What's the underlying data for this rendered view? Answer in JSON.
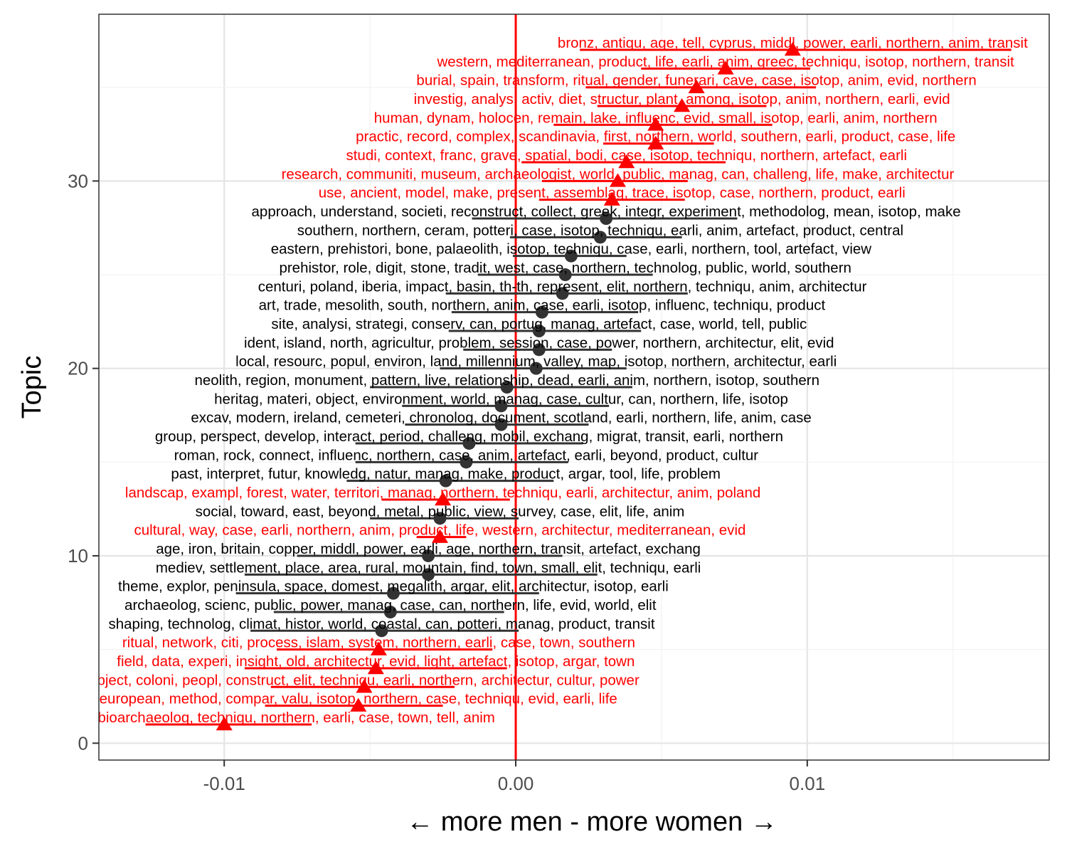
{
  "chart_data": {
    "type": "scatter",
    "xlabel": "← more men  -  more women →",
    "ylabel": "Topic",
    "xlim": [
      -0.0143,
      0.0183
    ],
    "ylim": [
      -0.9,
      38.9
    ],
    "x_ticks": [
      -0.01,
      0.0,
      0.01
    ],
    "x_tick_labels": [
      "-0.01",
      "0.00",
      "0.01"
    ],
    "y_ticks": [
      0,
      10,
      20,
      30
    ],
    "y_tick_labels": [
      "0",
      "10",
      "20",
      "30"
    ],
    "grid": true,
    "reference_line": {
      "x": 0,
      "color": "#ff0000"
    },
    "significant_color": "#ff0000",
    "nonsignificant_color": "#333333",
    "points": [
      {
        "topic": 1,
        "x": -0.01,
        "lo": -0.0127,
        "hi": -0.007,
        "significant": true,
        "label": "archaeobotan, isotop, bioarchaeolog, techniqu, northern, earli, case, town, tell, anim"
      },
      {
        "topic": 2,
        "x": -0.0054,
        "lo": -0.0086,
        "hi": -0.0025,
        "significant": true,
        "label": "european, method, compar, valu, isotop, northern, case, techniqu, evid, earli, life"
      },
      {
        "topic": 3,
        "x": -0.0052,
        "lo": -0.0084,
        "hi": -0.0021,
        "significant": true,
        "label": "object, coloni, peopl, construct, elit, techniqu, earli, northern, architectur, cultur, power"
      },
      {
        "topic": 4,
        "x": -0.0048,
        "lo": -0.0093,
        "hi": -0.0003,
        "significant": true,
        "label": "field, data, experi, insight, old, architectur, evid, light, artefact, isotop, argar, town"
      },
      {
        "topic": 5,
        "x": -0.0047,
        "lo": -0.0082,
        "hi": -0.0008,
        "significant": true,
        "label": "ritual, network, citi, process, islam, system, northern, earli, case, town, southern"
      },
      {
        "topic": 6,
        "x": -0.0046,
        "lo": -0.0091,
        "hi": 0.0001,
        "significant": false,
        "label": "shaping, technolog, climat, histor, world, coastal, can, potteri, manag, product, transit"
      },
      {
        "topic": 7,
        "x": -0.0043,
        "lo": -0.0083,
        "hi": -0.0004,
        "significant": false,
        "label": "archaeolog, scienc, public, power, manag, case, can, northern, life, evid, world, elit"
      },
      {
        "topic": 8,
        "x": -0.0042,
        "lo": -0.0096,
        "hi": 0.0008,
        "significant": false,
        "label": "theme, explor, peninsula, space, domest, megalith, argar, elit, architectur, isotop, earli"
      },
      {
        "topic": 9,
        "x": -0.003,
        "lo": -0.0093,
        "hi": 0.0028,
        "significant": false,
        "label": "mediev, settlement, place, area, rural, mountain, find, town, small, elit, techniqu, earli"
      },
      {
        "topic": 10,
        "x": -0.003,
        "lo": -0.0075,
        "hi": 0.0016,
        "significant": false,
        "label": "age, iron, britain, copper, middl, power, earli, age, northern, transit, artefact, exchang"
      },
      {
        "topic": 11,
        "x": -0.0026,
        "lo": -0.0034,
        "hi": -0.0017,
        "significant": true,
        "label": "cultural, way, case, earli, northern, anim, product, life, western, architectur, mediterranean, evid"
      },
      {
        "topic": 12,
        "x": -0.0026,
        "lo": -0.005,
        "hi": 0.0001,
        "significant": false,
        "label": "social, toward, east, beyond, metal, public, view, survey, case, elit, life, anim"
      },
      {
        "topic": 13,
        "x": -0.0025,
        "lo": -0.0046,
        "hi": -0.0002,
        "significant": true,
        "label": "landscap, exampl, forest, water, territori, manag, northern, techniqu, earli, architectur, anim, poland"
      },
      {
        "topic": 14,
        "x": -0.0024,
        "lo": -0.0058,
        "hi": 0.0013,
        "significant": false,
        "label": "past, interpret, futur, knowledg, natur, manag, make, product, argar, tool, life, problem"
      },
      {
        "topic": 15,
        "x": -0.0017,
        "lo": -0.0055,
        "hi": 0.0018,
        "significant": false,
        "label": "roman, rock, connect, influenc, northern, case, anim, artefact, earli, beyond, product, cultur"
      },
      {
        "topic": 16,
        "x": -0.0016,
        "lo": -0.0055,
        "hi": 0.0023,
        "significant": false,
        "label": "group, perspect, develop, interact, period, challeng, mobil, exchang, migrat, transit, earli, northern"
      },
      {
        "topic": 17,
        "x": -0.0005,
        "lo": -0.0038,
        "hi": 0.0025,
        "significant": false,
        "label": "excav, modern, ireland, cemeteri, chronolog, document, scotland, earli, northern, life, anim, case"
      },
      {
        "topic": 18,
        "x": -0.0005,
        "lo": -0.0039,
        "hi": 0.0032,
        "significant": false,
        "label": "heritag, materi, object, environment, world, manag, case, cultur, can, northern, life, isotop"
      },
      {
        "topic": 19,
        "x": -0.0003,
        "lo": -0.005,
        "hi": 0.004,
        "significant": false,
        "label": "neolith, region, monument, pattern, live, relationship, dead, earli, anim, northern, isotop, southern"
      },
      {
        "topic": 20,
        "x": 0.0007,
        "lo": -0.0026,
        "hi": 0.0038,
        "significant": false,
        "label": "local, resourc, popul, environ, land, millennium, valley, map, isotop, northern, architectur, earli"
      },
      {
        "topic": 21,
        "x": 0.0008,
        "lo": -0.0018,
        "hi": 0.0033,
        "significant": false,
        "label": "ident, island, north, agricultur, problem, session, case, power, northern, architectur, elit, evid"
      },
      {
        "topic": 22,
        "x": 0.0008,
        "lo": -0.0023,
        "hi": 0.0043,
        "significant": false,
        "label": "site, analysi, strategi, conserv, can, portug, manag, artefact, case, world, tell, public"
      },
      {
        "topic": 23,
        "x": 0.0009,
        "lo": -0.0022,
        "hi": 0.0042,
        "significant": false,
        "label": "art, trade, mesolith, south, northern, anim, case, earli, isotop, influenc, techniqu, product"
      },
      {
        "topic": 24,
        "x": 0.0016,
        "lo": -0.0024,
        "hi": 0.0059,
        "significant": false,
        "label": "centuri, poland, iberia, impact, basin, th-th, represent, elit, northern, techniqu, anim, architectur"
      },
      {
        "topic": 25,
        "x": 0.0017,
        "lo": -0.0013,
        "hi": 0.0047,
        "significant": false,
        "label": "prehistor, role, digit, stone, tradit, west, case, northern, technolog, public, world, southern"
      },
      {
        "topic": 26,
        "x": 0.0019,
        "lo": -0.0001,
        "hi": 0.0038,
        "significant": false,
        "label": "eastern, prehistori, bone, palaeolith, isotop, techniqu, case, earli, northern, tool, artefact, view"
      },
      {
        "topic": 27,
        "x": 0.0029,
        "lo": -0.0002,
        "hi": 0.0057,
        "significant": false,
        "label": "southern, northern, ceram, potteri, case, isotop, techniqu, earli, anim, artefact, product, central"
      },
      {
        "topic": 28,
        "x": 0.0031,
        "lo": -0.0015,
        "hi": 0.0076,
        "significant": false,
        "label": "approach, understand, societi, reconstruct, collect, greek, integr, experiment, methodolog, mean, isotop, make"
      },
      {
        "topic": 29,
        "x": 0.0033,
        "lo": 0.0008,
        "hi": 0.0058,
        "significant": true,
        "label": "use, ancient, model, make, present, assemblag, trace, isotop, case, northern, product, earli"
      },
      {
        "topic": 30,
        "x": 0.0035,
        "lo": 0.0009,
        "hi": 0.0059,
        "significant": true,
        "label": "research, communiti, museum, archaeologist, world, public, manag, can, challeng, life, make, architectur"
      },
      {
        "topic": 31,
        "x": 0.0038,
        "lo": 0.0002,
        "hi": 0.0072,
        "significant": true,
        "label": "studi, context, franc, grave, spatial, bodi, case, isotop, techniqu, northern, artefact, earli"
      },
      {
        "topic": 32,
        "x": 0.0048,
        "lo": 0.003,
        "hi": 0.0068,
        "significant": true,
        "label": "practic, record, complex, scandinavia, first, northern, world, southern, earli, product, case, life"
      },
      {
        "topic": 33,
        "x": 0.0048,
        "lo": 0.0013,
        "hi": 0.0088,
        "significant": true,
        "label": "human, dynam, holocen, remain, lake, influenc, evid, small, isotop, earli, anim, northern"
      },
      {
        "topic": 34,
        "x": 0.0057,
        "lo": 0.0028,
        "hi": 0.0086,
        "significant": true,
        "label": "investig, analys, activ, diet, structur, plant, among, isotop, anim, northern, earli, evid"
      },
      {
        "topic": 35,
        "x": 0.0062,
        "lo": 0.0024,
        "hi": 0.0103,
        "significant": true,
        "label": "burial, spain, transform, ritual, gender, funerari, cave, case, isotop, anim, evid, northern"
      },
      {
        "topic": 36,
        "x": 0.0072,
        "lo": 0.0043,
        "hi": 0.0101,
        "significant": true,
        "label": "western, mediterranean, product, life, earli, anim, greec, techniqu, isotop, northern, transit"
      },
      {
        "topic": 37,
        "x": 0.0095,
        "lo": 0.0022,
        "hi": 0.017,
        "significant": true,
        "label": "bronz, antiqu, age, tell, cyprus, middl, power, earli, northern, anim, transit"
      }
    ]
  }
}
